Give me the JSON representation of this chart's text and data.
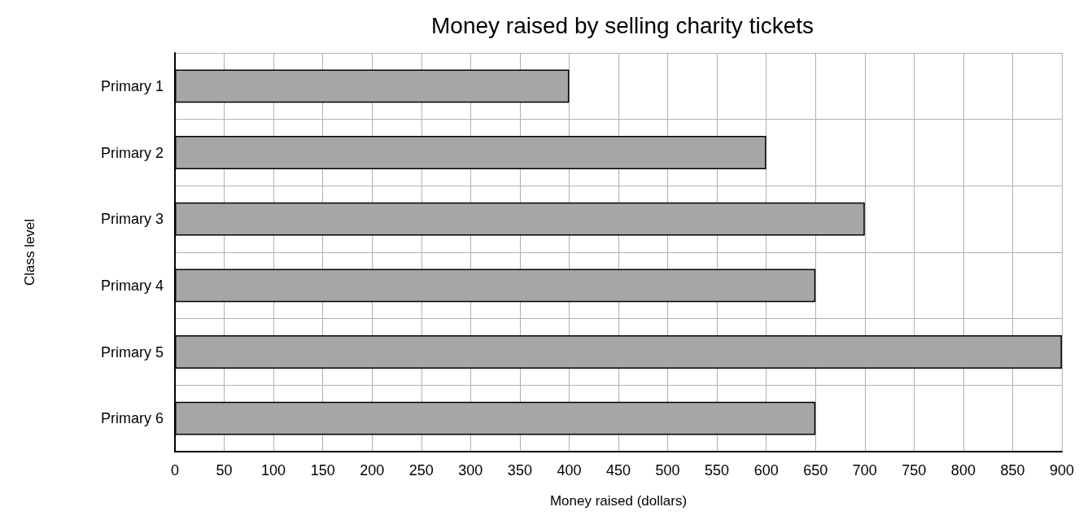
{
  "chart_data": {
    "type": "bar",
    "orientation": "horizontal",
    "title": "Money raised by selling charity tickets",
    "xlabel": "Money raised (dollars)",
    "ylabel": "Class level",
    "categories": [
      "Primary 1",
      "Primary 2",
      "Primary 3",
      "Primary 4",
      "Primary 5",
      "Primary 6"
    ],
    "values": [
      400,
      600,
      700,
      650,
      900,
      650
    ],
    "color": "#a6a6a6",
    "xlim": [
      0,
      900
    ],
    "xticks": [
      0,
      50,
      100,
      150,
      200,
      250,
      300,
      350,
      400,
      450,
      500,
      550,
      600,
      650,
      700,
      750,
      800,
      850,
      900
    ],
    "grid": true
  }
}
